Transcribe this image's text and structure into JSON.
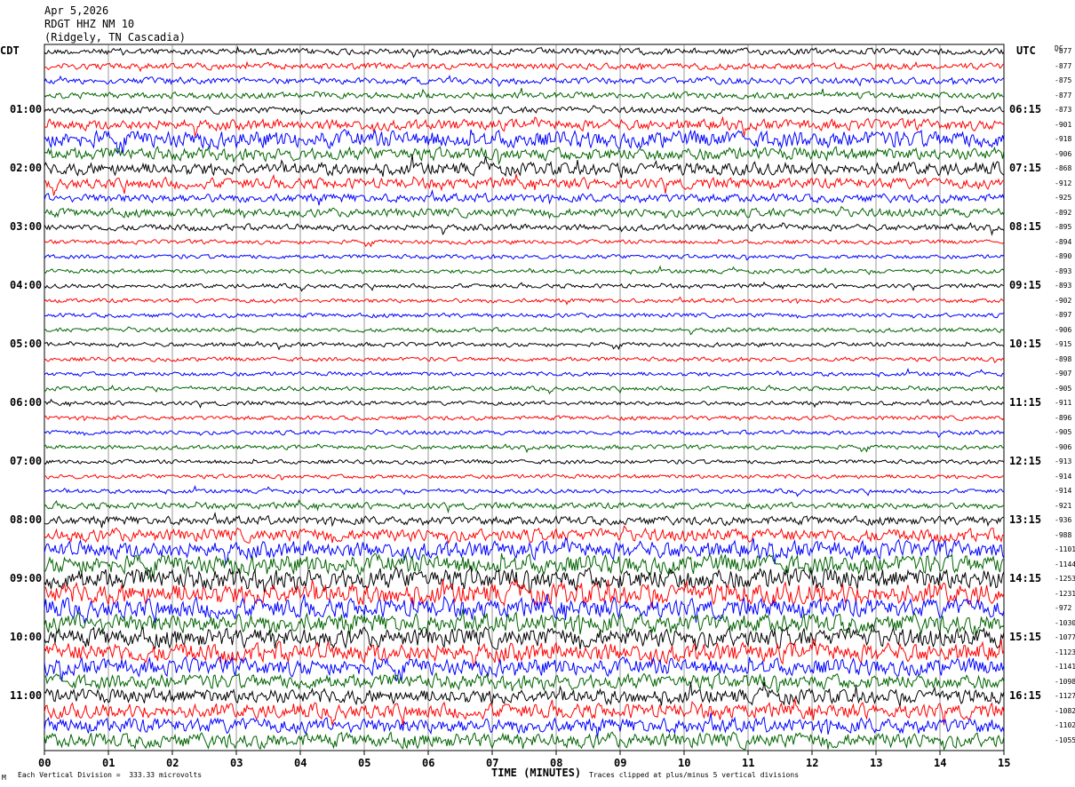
{
  "header": {
    "date": "Apr 5,2026",
    "station": "RDGT HHZ NM 10",
    "location": "(Ridgely, TN Cascadia)"
  },
  "left_zone": "CDT",
  "right_zone": "UTC",
  "dc_header": "DC",
  "footer": {
    "scale_note": "Each Vertical Division =  333.33 microvolts",
    "clip_note": "Traces clipped at plus/minus 5 vertical divisions",
    "corner_mark": "M"
  },
  "chart_data": {
    "type": "line",
    "title": "",
    "xlabel": "TIME (MINUTES)",
    "xlim": [
      0,
      15
    ],
    "x_ticks": [
      "00",
      "01",
      "02",
      "03",
      "04",
      "05",
      "06",
      "07",
      "08",
      "09",
      "10",
      "11",
      "12",
      "13",
      "14",
      "15"
    ],
    "trace_colors": [
      "#000000",
      "#ff0000",
      "#0000ff",
      "#006400"
    ],
    "left_time_labels": [
      "01:00",
      "02:00",
      "03:00",
      "04:00",
      "05:00",
      "06:00",
      "07:00",
      "08:00",
      "09:00",
      "10:00",
      "11:00"
    ],
    "right_time_labels": [
      "06:15",
      "07:15",
      "08:15",
      "09:15",
      "10:15",
      "11:15",
      "12:15",
      "13:15",
      "14:15",
      "15:15",
      "16:15"
    ],
    "dc_values": [
      "-877",
      "-877",
      "-875",
      "-877",
      "-873",
      "-901",
      "-918",
      "-906",
      "-868",
      "-912",
      "-925",
      "-892",
      "-895",
      "-894",
      "-890",
      "-893",
      "-893",
      "-902",
      "-897",
      "-906",
      "-915",
      "-898",
      "-907",
      "-905",
      "-911",
      "-896",
      "-905",
      "-906",
      "-913",
      "-914",
      "-914",
      "-921",
      "-936",
      "-988",
      "-1101",
      "-1144",
      "-1253",
      "-1231",
      "-972",
      "-1030",
      "-1077",
      "-1123",
      "-1141",
      "-1098",
      "-1127",
      "-1082",
      "-1102",
      "-1055"
    ],
    "trace_amplitude": [
      3,
      3,
      3,
      3,
      3,
      5,
      8,
      6,
      6,
      5,
      4,
      4,
      3,
      2,
      2,
      2,
      2,
      2,
      2,
      2,
      2,
      2,
      2,
      2,
      2,
      2,
      2,
      2,
      2,
      2,
      2,
      3,
      4,
      6,
      8,
      9,
      10,
      10,
      9,
      9,
      9,
      9,
      8,
      7,
      7,
      7,
      7,
      7
    ]
  }
}
